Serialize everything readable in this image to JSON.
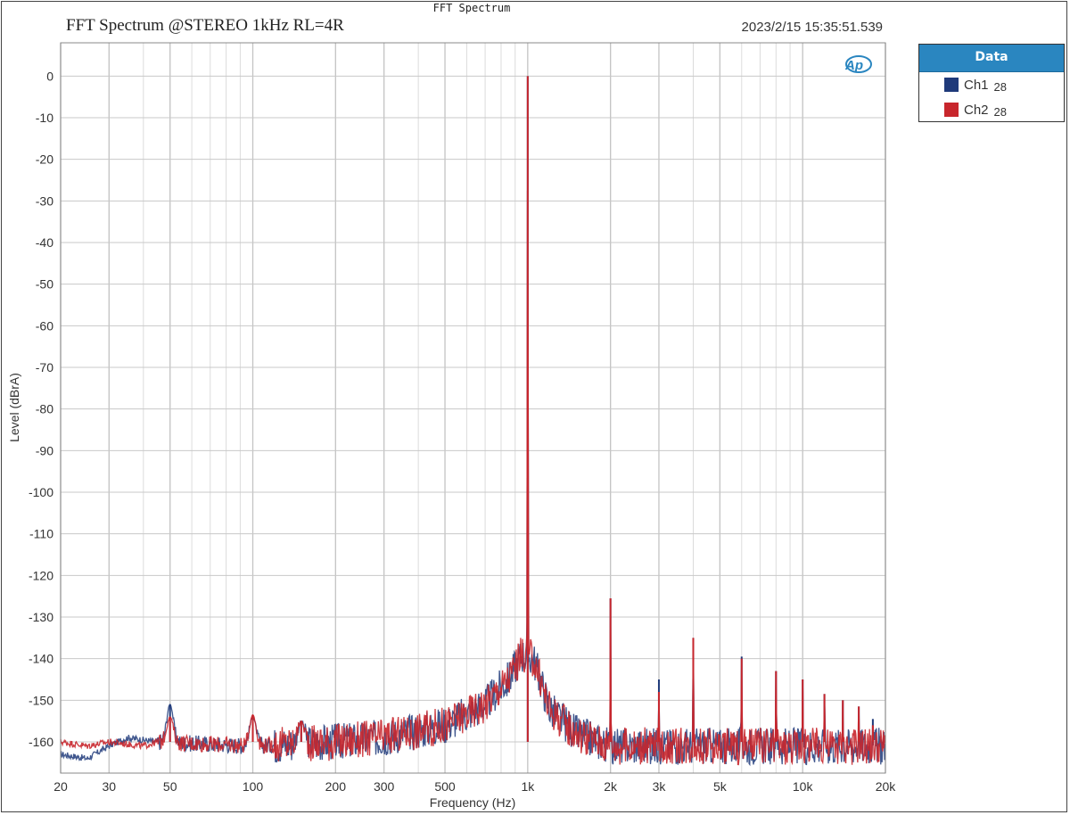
{
  "window_title": "FFT Spectrum",
  "chart_data": {
    "type": "line",
    "title": "FFT Spectrum @STEREO 1kHz RL=4R",
    "timestamp": "2023/2/15 15:35:51.539",
    "xlabel": "Frequency (Hz)",
    "ylabel": "Level (dBrA)",
    "x_scale": "log",
    "xlim": [
      20,
      20000
    ],
    "ylim": [
      -167.5,
      8
    ],
    "grid": true,
    "x_ticks": [
      {
        "value": 20,
        "label": "20"
      },
      {
        "value": 30,
        "label": "30"
      },
      {
        "value": 50,
        "label": "50"
      },
      {
        "value": 100,
        "label": "100"
      },
      {
        "value": 200,
        "label": "200"
      },
      {
        "value": 300,
        "label": "300"
      },
      {
        "value": 500,
        "label": "500"
      },
      {
        "value": 1000,
        "label": "1k"
      },
      {
        "value": 2000,
        "label": "2k"
      },
      {
        "value": 3000,
        "label": "3k"
      },
      {
        "value": 5000,
        "label": "5k"
      },
      {
        "value": 10000,
        "label": "10k"
      },
      {
        "value": 20000,
        "label": "20k"
      }
    ],
    "y_ticks": [
      0,
      -10,
      -20,
      -30,
      -40,
      -50,
      -60,
      -70,
      -80,
      -90,
      -100,
      -110,
      -120,
      -130,
      -140,
      -150,
      -160
    ],
    "legend": {
      "title": "Data",
      "placement": "right"
    },
    "series": [
      {
        "name": "Ch1",
        "count": "28",
        "color": "#1f3a7a",
        "peaks": [
          [
            50,
            -151
          ],
          [
            100,
            -154
          ],
          [
            150,
            -155
          ],
          [
            1000,
            0
          ],
          [
            2000,
            -125.5
          ],
          [
            3000,
            -145
          ],
          [
            4000,
            -135
          ],
          [
            6000,
            -139.5
          ],
          [
            8000,
            -143
          ],
          [
            10000,
            -145
          ],
          [
            12000,
            -148.5
          ],
          [
            14000,
            -150
          ],
          [
            16000,
            -151.5
          ],
          [
            18000,
            -154.5
          ]
        ],
        "floor": [
          [
            20,
            -163
          ],
          [
            25,
            -164
          ],
          [
            30,
            -161
          ],
          [
            35,
            -159
          ],
          [
            45,
            -160
          ],
          [
            100,
            -161
          ],
          [
            200,
            -160
          ],
          [
            300,
            -159
          ],
          [
            500,
            -156
          ],
          [
            700,
            -151
          ],
          [
            850,
            -145
          ],
          [
            950,
            -139
          ],
          [
            1050,
            -140
          ],
          [
            1200,
            -152
          ],
          [
            1500,
            -158
          ],
          [
            2000,
            -161
          ],
          [
            20000,
            -161
          ]
        ]
      },
      {
        "name": "Ch2",
        "count": "28",
        "color": "#c8262c",
        "peaks": [
          [
            50,
            -154
          ],
          [
            100,
            -153.5
          ],
          [
            150,
            -155
          ],
          [
            1000,
            0
          ],
          [
            2000,
            -125.5
          ],
          [
            3000,
            -148
          ],
          [
            4000,
            -135
          ],
          [
            6000,
            -140
          ],
          [
            8000,
            -143
          ],
          [
            10000,
            -145
          ],
          [
            12000,
            -148.5
          ],
          [
            14000,
            -150
          ],
          [
            16000,
            -151.5
          ],
          [
            18000,
            -156
          ]
        ],
        "floor": [
          [
            20,
            -160
          ],
          [
            25,
            -161
          ],
          [
            30,
            -160
          ],
          [
            40,
            -161
          ],
          [
            45,
            -160
          ],
          [
            100,
            -161
          ],
          [
            200,
            -160
          ],
          [
            300,
            -159
          ],
          [
            500,
            -156
          ],
          [
            700,
            -151
          ],
          [
            850,
            -145
          ],
          [
            950,
            -139
          ],
          [
            1050,
            -140
          ],
          [
            1200,
            -152
          ],
          [
            1500,
            -158
          ],
          [
            2000,
            -161
          ],
          [
            20000,
            -161
          ]
        ]
      }
    ]
  }
}
